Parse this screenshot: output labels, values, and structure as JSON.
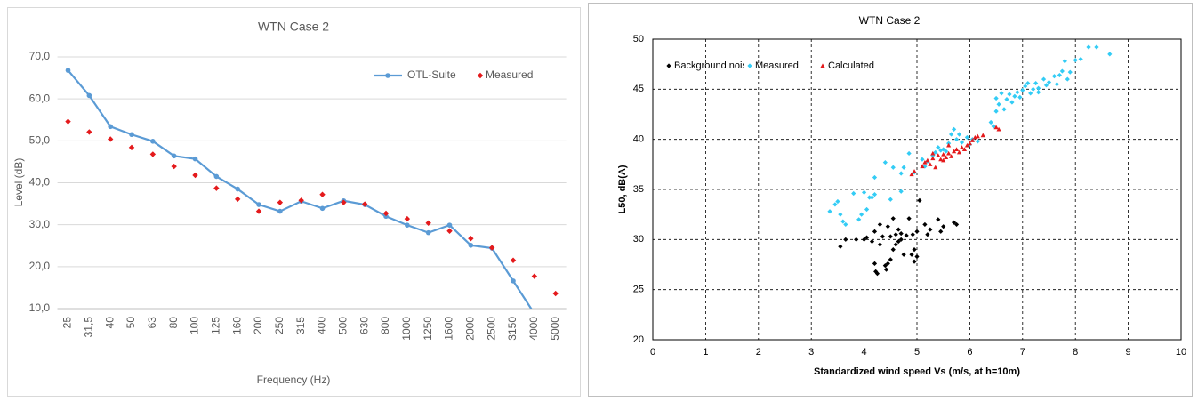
{
  "chart_data": [
    {
      "type": "line",
      "title": "WTN Case 2",
      "xlabel": "Frequency (Hz)",
      "ylabel": "Level (dB)",
      "categories": [
        "25",
        "31,5",
        "40",
        "50",
        "63",
        "80",
        "100",
        "125",
        "160",
        "200",
        "250",
        "315",
        "400",
        "500",
        "630",
        "800",
        "1000",
        "1250",
        "1600",
        "2000",
        "2500",
        "3150",
        "4000",
        "5000"
      ],
      "series": [
        {
          "name": "OTL-Suite",
          "color": "#5b9bd5",
          "line": true,
          "marker": "circle",
          "values": [
            66.8,
            60.8,
            53.4,
            51.5,
            49.9,
            46.4,
            45.7,
            41.5,
            38.5,
            34.8,
            33.2,
            35.6,
            33.9,
            35.7,
            34.8,
            32.0,
            29.9,
            28.1,
            29.9,
            25.1,
            24.4,
            16.6,
            8.8,
            null
          ]
        },
        {
          "name": "Measured",
          "color": "#e41a1c",
          "line": false,
          "marker": "diamond",
          "values": [
            54.6,
            52.1,
            50.4,
            48.4,
            46.8,
            43.9,
            41.8,
            38.7,
            36.1,
            33.2,
            35.3,
            35.8,
            37.2,
            35.3,
            34.9,
            32.7,
            31.4,
            30.4,
            28.5,
            26.7,
            24.5,
            21.5,
            17.7,
            13.6
          ]
        }
      ],
      "ylim": [
        10,
        70
      ],
      "yticks": [
        {
          "value": 10,
          "label": "10,0"
        },
        {
          "value": 20,
          "label": "20,0"
        },
        {
          "value": 30,
          "label": "30,0"
        },
        {
          "value": 40,
          "label": "40,0"
        },
        {
          "value": 50,
          "label": "50,0"
        },
        {
          "value": 60,
          "label": "60,0"
        },
        {
          "value": 70,
          "label": "70,0"
        }
      ],
      "grid": true
    },
    {
      "type": "scatter",
      "title": "WTN Case 2",
      "xlabel": "Standardized wind speed Vs (m/s, at h=10m)",
      "ylabel": "L50, dB(A)",
      "series": [
        {
          "name": "Background noise",
          "color": "#000000",
          "marker": "diamond",
          "x": [
            3.55,
            3.65,
            3.85,
            4.05,
            4.15,
            4.2,
            4.22,
            4.25,
            4.3,
            4.3,
            4.35,
            4.4,
            4.42,
            4.45,
            4.45,
            4.5,
            4.5,
            4.55,
            4.55,
            4.6,
            4.6,
            4.65,
            4.65,
            4.7,
            4.7,
            4.75,
            4.8,
            4.85,
            4.9,
            4.92,
            4.95,
            4.95,
            5.0,
            5.0,
            5.05,
            5.15,
            5.2,
            5.25,
            5.4,
            5.45,
            5.5,
            5.7,
            5.75,
            4.2,
            4.0
          ],
          "values": [
            29.3,
            30.0,
            30.0,
            30.2,
            29.8,
            27.6,
            26.8,
            26.6,
            29.5,
            31.5,
            30.3,
            27.4,
            27.0,
            27.6,
            31.3,
            28.0,
            30.3,
            29.0,
            32.1,
            29.5,
            30.5,
            29.8,
            31.0,
            30.6,
            30.0,
            28.5,
            30.4,
            32.1,
            28.5,
            30.5,
            27.8,
            29.0,
            30.8,
            28.3,
            33.9,
            31.5,
            30.5,
            31.0,
            32.0,
            30.8,
            31.3,
            31.7,
            31.5,
            30.8,
            30.0
          ]
        },
        {
          "name": "Measured",
          "color": "#33ccf5",
          "marker": "diamond",
          "x": [
            3.35,
            3.45,
            3.5,
            3.55,
            3.6,
            3.65,
            3.8,
            3.9,
            3.95,
            4.0,
            4.05,
            4.1,
            4.15,
            4.2,
            4.2,
            4.4,
            4.5,
            4.55,
            4.7,
            4.7,
            4.75,
            4.85,
            4.95,
            5.1,
            5.15,
            5.2,
            5.3,
            5.35,
            5.4,
            5.45,
            5.5,
            5.55,
            5.6,
            5.65,
            5.7,
            5.75,
            5.8,
            5.85,
            5.95,
            6.0,
            6.05,
            6.15,
            6.4,
            6.45,
            6.5,
            6.5,
            6.55,
            6.6,
            6.65,
            6.7,
            6.75,
            6.8,
            6.85,
            6.9,
            7.0,
            7.05,
            7.1,
            7.15,
            7.2,
            7.25,
            7.3,
            7.4,
            7.45,
            7.5,
            7.6,
            7.65,
            7.7,
            7.75,
            7.8,
            7.85,
            7.9,
            8.0,
            8.1,
            8.25,
            8.4,
            8.65,
            7.3,
            6.95
          ],
          "values": [
            32.8,
            33.5,
            33.8,
            32.5,
            31.8,
            31.5,
            34.6,
            32.0,
            32.5,
            34.7,
            33.0,
            34.2,
            34.2,
            36.2,
            34.5,
            37.7,
            34.0,
            37.2,
            36.6,
            34.8,
            37.2,
            38.6,
            36.7,
            38.0,
            37.3,
            37.8,
            38.4,
            38.7,
            39.2,
            38.9,
            39.0,
            38.8,
            39.6,
            40.5,
            41.0,
            40.0,
            40.5,
            39.7,
            40.2,
            39.5,
            40.0,
            39.8,
            41.7,
            41.3,
            42.8,
            44.1,
            43.5,
            44.6,
            43.0,
            44.0,
            44.5,
            43.7,
            44.3,
            44.7,
            44.9,
            45.3,
            45.6,
            44.6,
            45.0,
            45.6,
            45.1,
            46.0,
            45.4,
            45.7,
            46.3,
            45.5,
            46.4,
            46.8,
            47.8,
            46.0,
            46.7,
            47.9,
            48.0,
            49.2,
            49.2,
            48.5,
            44.7,
            44.2
          ]
        },
        {
          "name": "Calculated",
          "color": "#e41a1c",
          "marker": "triangle",
          "x": [
            4.9,
            4.95,
            5.1,
            5.15,
            5.2,
            5.25,
            5.3,
            5.35,
            5.4,
            5.45,
            5.5,
            5.5,
            5.55,
            5.6,
            5.65,
            5.7,
            5.75,
            5.8,
            5.85,
            5.9,
            5.95,
            6.0,
            6.05,
            6.1,
            6.15,
            6.25,
            6.5,
            6.55,
            5.6,
            5.3
          ],
          "values": [
            36.5,
            36.8,
            37.3,
            37.7,
            37.9,
            37.5,
            38.1,
            37.2,
            38.4,
            38.0,
            38.5,
            37.9,
            38.2,
            38.6,
            38.3,
            38.8,
            39.0,
            38.7,
            39.2,
            39.0,
            39.4,
            39.6,
            39.9,
            40.2,
            40.3,
            40.4,
            41.2,
            41.0,
            39.4,
            38.6
          ]
        }
      ],
      "xlim": [
        0,
        10
      ],
      "xticks": [
        0,
        1,
        2,
        3,
        4,
        5,
        6,
        7,
        8,
        9,
        10
      ],
      "ylim": [
        20,
        50
      ],
      "yticks": [
        20,
        25,
        30,
        35,
        40,
        45,
        50
      ],
      "grid": true
    }
  ]
}
